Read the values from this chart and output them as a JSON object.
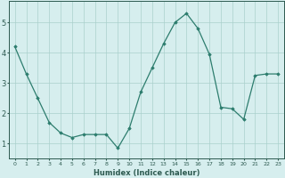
{
  "x": [
    0,
    1,
    2,
    3,
    4,
    5,
    6,
    7,
    8,
    9,
    10,
    11,
    12,
    13,
    14,
    15,
    16,
    17,
    18,
    19,
    20,
    21,
    22,
    23
  ],
  "y": [
    4.2,
    3.3,
    2.5,
    1.7,
    1.35,
    1.2,
    1.3,
    1.3,
    1.3,
    0.85,
    1.5,
    2.7,
    3.5,
    4.3,
    5.0,
    5.3,
    4.8,
    3.95,
    2.2,
    2.15,
    1.8,
    3.25,
    3.3,
    3.3
  ],
  "line_color": "#2d7d6e",
  "marker_color": "#2d7d6e",
  "bg_color": "#d6eeee",
  "grid_color": "#aad0cc",
  "xlabel": "Humidex (Indice chaleur)",
  "tick_label_color": "#2d5a50",
  "axis_color": "#2d5a50",
  "ylim": [
    0.5,
    5.7
  ],
  "xlim": [
    -0.5,
    23.5
  ],
  "yticks": [
    1,
    2,
    3,
    4,
    5
  ],
  "figsize": [
    3.2,
    2.0
  ],
  "dpi": 100
}
